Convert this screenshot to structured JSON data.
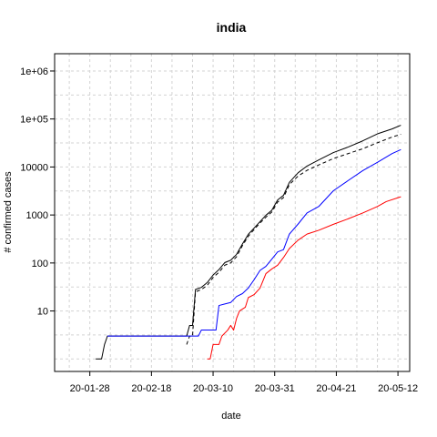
{
  "chart_data": {
    "type": "line",
    "title": "india",
    "xlabel": "date",
    "ylabel": "# confirmed cases",
    "y_scale": "log10",
    "ylim": [
      1,
      1000000
    ],
    "xlim": [
      "2020-01-16",
      "2020-05-16"
    ],
    "grid": true,
    "x_ticks": [
      "20-01-28",
      "20-02-18",
      "20-03-10",
      "20-03-31",
      "20-04-21",
      "20-05-12"
    ],
    "x_tick_dates": [
      "2020-01-28",
      "2020-02-18",
      "2020-03-10",
      "2020-03-31",
      "2020-04-21",
      "2020-05-12"
    ],
    "y_ticks": [
      "10",
      "100",
      "1000",
      "10000",
      "1e+05",
      "1e+06"
    ],
    "y_tick_values": [
      10,
      100,
      1000,
      10000,
      100000,
      1000000
    ],
    "series": [
      {
        "color": "#000000",
        "dash": "solid",
        "points": [
          [
            "2020-01-30",
            1
          ],
          [
            "2020-02-01",
            1
          ],
          [
            "2020-02-02",
            2
          ],
          [
            "2020-02-03",
            3
          ],
          [
            "2020-03-01",
            3
          ],
          [
            "2020-03-02",
            5
          ],
          [
            "2020-03-03",
            5
          ],
          [
            "2020-03-04",
            28
          ],
          [
            "2020-03-06",
            31
          ],
          [
            "2020-03-08",
            39
          ],
          [
            "2020-03-10",
            56
          ],
          [
            "2020-03-12",
            73
          ],
          [
            "2020-03-14",
            102
          ],
          [
            "2020-03-16",
            114
          ],
          [
            "2020-03-18",
            151
          ],
          [
            "2020-03-20",
            249
          ],
          [
            "2020-03-22",
            396
          ],
          [
            "2020-03-24",
            536
          ],
          [
            "2020-03-26",
            727
          ],
          [
            "2020-03-28",
            987
          ],
          [
            "2020-03-30",
            1251
          ],
          [
            "2020-04-01",
            2059
          ],
          [
            "2020-04-03",
            2567
          ],
          [
            "2020-04-05",
            4778
          ],
          [
            "2020-04-08",
            7600
          ],
          [
            "2020-04-11",
            10450
          ],
          [
            "2020-04-15",
            14000
          ],
          [
            "2020-04-20",
            20000
          ],
          [
            "2020-04-25",
            26000
          ],
          [
            "2020-04-30",
            35000
          ],
          [
            "2020-05-05",
            49000
          ],
          [
            "2020-05-10",
            62000
          ],
          [
            "2020-05-13",
            74000
          ]
        ]
      },
      {
        "color": "#000000",
        "dash": "dashed",
        "points": [
          [
            "2020-03-01",
            2
          ],
          [
            "2020-03-02",
            3
          ],
          [
            "2020-03-03",
            3
          ],
          [
            "2020-03-04",
            25
          ],
          [
            "2020-03-06",
            28
          ],
          [
            "2020-03-08",
            34
          ],
          [
            "2020-03-10",
            50
          ],
          [
            "2020-03-12",
            64
          ],
          [
            "2020-03-14",
            90
          ],
          [
            "2020-03-16",
            100
          ],
          [
            "2020-03-18",
            135
          ],
          [
            "2020-03-20",
            230
          ],
          [
            "2020-03-22",
            360
          ],
          [
            "2020-03-24",
            500
          ],
          [
            "2020-03-26",
            680
          ],
          [
            "2020-03-28",
            900
          ],
          [
            "2020-03-30",
            1150
          ],
          [
            "2020-04-01",
            1860
          ],
          [
            "2020-04-03",
            2300
          ],
          [
            "2020-04-05",
            4300
          ],
          [
            "2020-04-08",
            6500
          ],
          [
            "2020-04-11",
            8500
          ],
          [
            "2020-04-15",
            11000
          ],
          [
            "2020-04-20",
            15000
          ],
          [
            "2020-04-25",
            19000
          ],
          [
            "2020-04-30",
            24000
          ],
          [
            "2020-05-05",
            32000
          ],
          [
            "2020-05-10",
            42000
          ],
          [
            "2020-05-13",
            48000
          ]
        ]
      },
      {
        "color": "#0000ff",
        "dash": "solid",
        "points": [
          [
            "2020-02-03",
            3
          ],
          [
            "2020-03-05",
            3
          ],
          [
            "2020-03-06",
            4
          ],
          [
            "2020-03-11",
            4
          ],
          [
            "2020-03-12",
            13
          ],
          [
            "2020-03-14",
            14
          ],
          [
            "2020-03-16",
            15
          ],
          [
            "2020-03-18",
            20
          ],
          [
            "2020-03-20",
            23
          ],
          [
            "2020-03-22",
            30
          ],
          [
            "2020-03-24",
            45
          ],
          [
            "2020-03-26",
            70
          ],
          [
            "2020-03-28",
            85
          ],
          [
            "2020-03-30",
            120
          ],
          [
            "2020-04-01",
            170
          ],
          [
            "2020-04-03",
            190
          ],
          [
            "2020-04-05",
            400
          ],
          [
            "2020-04-08",
            650
          ],
          [
            "2020-04-11",
            1100
          ],
          [
            "2020-04-15",
            1500
          ],
          [
            "2020-04-20",
            3200
          ],
          [
            "2020-04-25",
            5200
          ],
          [
            "2020-04-30",
            8400
          ],
          [
            "2020-05-05",
            12500
          ],
          [
            "2020-05-10",
            19000
          ],
          [
            "2020-05-13",
            23000
          ]
        ]
      },
      {
        "color": "#ff0000",
        "dash": "solid",
        "points": [
          [
            "2020-03-08",
            1
          ],
          [
            "2020-03-09",
            1
          ],
          [
            "2020-03-10",
            2
          ],
          [
            "2020-03-12",
            2
          ],
          [
            "2020-03-13",
            3
          ],
          [
            "2020-03-15",
            4
          ],
          [
            "2020-03-16",
            5
          ],
          [
            "2020-03-17",
            4
          ],
          [
            "2020-03-18",
            7
          ],
          [
            "2020-03-19",
            10
          ],
          [
            "2020-03-21",
            12
          ],
          [
            "2020-03-22",
            19
          ],
          [
            "2020-03-24",
            22
          ],
          [
            "2020-03-26",
            30
          ],
          [
            "2020-03-28",
            60
          ],
          [
            "2020-03-30",
            75
          ],
          [
            "2020-04-01",
            90
          ],
          [
            "2020-04-03",
            130
          ],
          [
            "2020-04-05",
            200
          ],
          [
            "2020-04-08",
            300
          ],
          [
            "2020-04-11",
            400
          ],
          [
            "2020-04-15",
            480
          ],
          [
            "2020-04-20",
            640
          ],
          [
            "2020-04-25",
            830
          ],
          [
            "2020-04-30",
            1100
          ],
          [
            "2020-05-05",
            1500
          ],
          [
            "2020-05-08",
            1900
          ],
          [
            "2020-05-13",
            2400
          ]
        ]
      }
    ]
  }
}
